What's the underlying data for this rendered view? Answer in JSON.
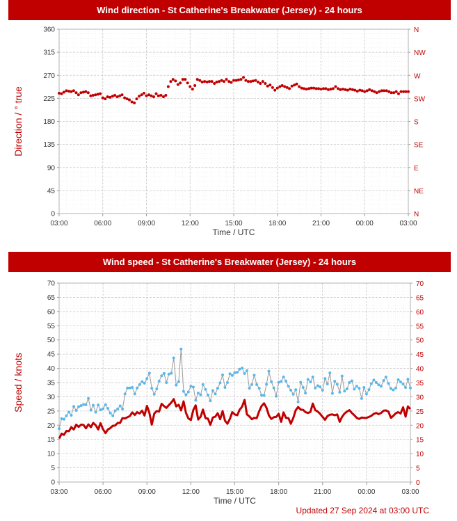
{
  "colors": {
    "banner": "#c00000",
    "accent": "#c00000",
    "gust": "#5bb7ea",
    "grid": "#c8c8c8",
    "axis_text": "#333333"
  },
  "footer": "Updated 27 Sep 2024 at 03:00 UTC",
  "chart_data": [
    {
      "type": "scatter",
      "title": "Wind direction - St Catherine's Breakwater (Jersey) - 24 hours",
      "xlabel": "Time / UTC",
      "ylabel": "Direction / ° true",
      "ylim": [
        0,
        360
      ],
      "y_ticks": [
        "0",
        "45",
        "90",
        "135",
        "180",
        "225",
        "270",
        "315",
        "360"
      ],
      "y_ticks_right": [
        "N",
        "NE",
        "E",
        "SE",
        "S",
        "SW",
        "W",
        "NW",
        "N"
      ],
      "x_ticks": [
        "03:00",
        "06:00",
        "09:00",
        "12:00",
        "15:00",
        "18:00",
        "21:00",
        "00:00",
        "03:00"
      ],
      "grid": true,
      "series": [
        {
          "x_hours_from_first_tick": [
            0.0,
            0.17,
            0.33,
            0.5,
            0.67,
            0.83,
            1.0,
            1.17,
            1.33,
            1.5,
            1.67,
            1.83,
            2.0,
            2.17,
            2.33,
            2.5,
            2.67,
            2.83,
            3.0,
            3.17,
            3.33,
            3.5,
            3.67,
            3.83,
            4.0,
            4.17,
            4.33,
            4.5,
            4.67,
            4.83,
            5.0,
            5.17,
            5.33,
            5.5,
            5.67,
            5.83,
            6.0,
            6.17,
            6.33,
            6.5,
            6.67,
            6.83,
            7.0,
            7.17,
            7.33,
            7.5,
            7.67,
            7.83,
            8.0,
            8.17,
            8.33,
            8.5,
            8.67,
            8.83,
            9.0,
            9.17,
            9.33,
            9.5,
            9.67,
            9.83,
            10.0,
            10.17,
            10.33,
            10.5,
            10.67,
            10.83,
            11.0,
            11.17,
            11.33,
            11.5,
            11.67,
            11.83,
            12.0,
            12.17,
            12.33,
            12.5,
            12.67,
            12.83,
            13.0,
            13.17,
            13.33,
            13.5,
            13.67,
            13.83,
            14.0,
            14.17,
            14.33,
            14.5,
            14.67,
            14.83,
            15.0,
            15.17,
            15.33,
            15.5,
            15.67,
            15.83,
            16.0,
            16.17,
            16.33,
            16.5,
            16.67,
            16.83,
            17.0,
            17.17,
            17.33,
            17.5,
            17.67,
            17.83,
            18.0,
            18.17,
            18.33,
            18.5,
            18.67,
            18.83,
            19.0,
            19.17,
            19.33,
            19.5,
            19.67,
            19.83,
            20.0,
            20.17,
            20.33,
            20.5,
            20.67,
            20.83,
            21.0,
            21.17,
            21.33,
            21.5,
            21.67,
            21.83,
            22.0,
            22.17,
            22.33,
            22.5,
            22.67,
            22.83,
            23.0,
            23.17,
            23.33,
            23.5,
            23.67,
            23.83,
            24.0
          ],
          "values": [
            235,
            234,
            237,
            240,
            239,
            238,
            240,
            236,
            232,
            236,
            237,
            238,
            236,
            230,
            231,
            232,
            233,
            234,
            226,
            224,
            228,
            227,
            229,
            231,
            228,
            230,
            232,
            226,
            224,
            222,
            218,
            216,
            224,
            229,
            232,
            235,
            230,
            232,
            230,
            228,
            234,
            230,
            231,
            228,
            231,
            248,
            258,
            262,
            259,
            252,
            255,
            262,
            262,
            255,
            248,
            243,
            250,
            262,
            260,
            257,
            258,
            257,
            258,
            258,
            254,
            257,
            258,
            260,
            258,
            262,
            258,
            256,
            260,
            260,
            261,
            262,
            266,
            260,
            258,
            258,
            259,
            260,
            257,
            254,
            258,
            254,
            249,
            251,
            246,
            241,
            245,
            248,
            250,
            248,
            246,
            244,
            249,
            251,
            253,
            248,
            245,
            244,
            243,
            244,
            245,
            245,
            244,
            244,
            243,
            244,
            244,
            242,
            243,
            244,
            248,
            244,
            242,
            243,
            242,
            241,
            243,
            242,
            241,
            239,
            241,
            240,
            238,
            240,
            242,
            240,
            238,
            236,
            238,
            240,
            240,
            240,
            238,
            236,
            236,
            238,
            234,
            238,
            238,
            238,
            238
          ]
        }
      ]
    },
    {
      "type": "line",
      "title": "Wind speed - St Catherine's Breakwater (Jersey) - 24 hours",
      "xlabel": "Time / UTC",
      "ylabel": "Speed / knots",
      "ylim": [
        0,
        70
      ],
      "y_ticks": [
        "0",
        "5",
        "10",
        "15",
        "20",
        "25",
        "30",
        "35",
        "40",
        "45",
        "50",
        "55",
        "60",
        "65",
        "70"
      ],
      "x_ticks": [
        "03:00",
        "06:00",
        "09:00",
        "12:00",
        "15:00",
        "18:00",
        "21:00",
        "00:00",
        "03:00"
      ],
      "grid": true,
      "series": [
        {
          "x_hours_from_first_tick": [
            0.0,
            0.17,
            0.33,
            0.5,
            0.67,
            0.83,
            1.0,
            1.17,
            1.33,
            1.5,
            1.67,
            1.83,
            2.0,
            2.17,
            2.33,
            2.5,
            2.67,
            2.83,
            3.0,
            3.17,
            3.33,
            3.5,
            3.67,
            3.83,
            4.0,
            4.17,
            4.33,
            4.5,
            4.67,
            4.83,
            5.0,
            5.17,
            5.33,
            5.5,
            5.67,
            5.83,
            6.0,
            6.17,
            6.33,
            6.5,
            6.67,
            6.83,
            7.0,
            7.17,
            7.33,
            7.5,
            7.67,
            7.83,
            8.0,
            8.17,
            8.33,
            8.5,
            8.67,
            8.83,
            9.0,
            9.17,
            9.33,
            9.5,
            9.67,
            9.83,
            10.0,
            10.17,
            10.33,
            10.5,
            10.67,
            10.83,
            11.0,
            11.17,
            11.33,
            11.5,
            11.67,
            11.83,
            12.0,
            12.17,
            12.33,
            12.5,
            12.67,
            12.83,
            13.0,
            13.17,
            13.33,
            13.5,
            13.67,
            13.83,
            14.0,
            14.17,
            14.33,
            14.5,
            14.67,
            14.83,
            15.0,
            15.17,
            15.33,
            15.5,
            15.67,
            15.83,
            16.0,
            16.17,
            16.33,
            16.5,
            16.67,
            16.83,
            17.0,
            17.17,
            17.33,
            17.5,
            17.67,
            17.83,
            18.0,
            18.17,
            18.33,
            18.5,
            18.67,
            18.83,
            19.0,
            19.17,
            19.33,
            19.5,
            19.67,
            19.83,
            20.0,
            20.17,
            20.33,
            20.5,
            20.67,
            20.83,
            21.0,
            21.17,
            21.33,
            21.5,
            21.67,
            21.83,
            22.0,
            22.17,
            22.33,
            22.5,
            22.67,
            22.83,
            23.0,
            23.17,
            23.33,
            23.5,
            23.67,
            23.83,
            24.0
          ],
          "values": [
            18.8,
            22.3,
            22.1,
            23.3,
            24.6,
            23.5,
            26.6,
            25.2,
            26.5,
            26.9,
            27.3,
            27.2,
            29.4,
            25.3,
            27.0,
            24.6,
            27.1,
            25.4,
            25.8,
            27.2,
            25.9,
            24.3,
            23.3,
            25.1,
            25.7,
            26.8,
            25.7,
            31.0,
            33.1,
            33.1,
            33.3,
            31.0,
            33.1,
            34.3,
            35.3,
            34.8,
            36.4,
            38.3,
            33.0,
            30.9,
            32.8,
            35.5,
            37.4,
            38.2,
            35.0,
            38.0,
            38.3,
            43.7,
            34.1,
            35.3,
            46.8,
            31.9,
            30.7,
            31.7,
            33.7,
            33.4,
            28.8,
            31.3,
            30.7,
            34.3,
            32.6,
            30.6,
            28.6,
            32.2,
            31.0,
            33.0,
            34.9,
            37.7,
            33.3,
            35.0,
            38.1,
            37.5,
            38.5,
            38.6,
            39.7,
            40.1,
            38.2,
            39.2,
            33.0,
            34.3,
            37.6,
            34.3,
            33.0,
            30.6,
            30.5,
            34.4,
            39.0,
            35.3,
            33.1,
            30.2,
            35.1,
            35.4,
            37.0,
            35.5,
            33.7,
            32.3,
            30.9,
            32.5,
            28.2,
            35.1,
            33.3,
            31.3,
            36.1,
            35.2,
            37.0,
            33.1,
            33.9,
            33.5,
            32.3,
            36.4,
            34.5,
            38.4,
            31.2,
            35.5,
            34.4,
            31.6,
            37.3,
            32.0,
            32.8,
            35.0,
            35.6,
            32.7,
            33.7,
            33.0,
            29.4,
            33.3,
            31.0,
            32.5,
            34.6,
            35.9,
            35.0,
            34.2,
            33.7,
            35.7,
            37.0,
            34.7,
            32.9,
            32.4,
            33.1,
            36.0,
            35.2,
            34.5,
            33.3,
            36.2,
            33.1
          ],
          "name": ""
        },
        {
          "x_hours_from_first_tick": [
            0.0,
            0.17,
            0.33,
            0.5,
            0.67,
            0.83,
            1.0,
            1.17,
            1.33,
            1.5,
            1.67,
            1.83,
            2.0,
            2.17,
            2.33,
            2.5,
            2.67,
            2.83,
            3.0,
            3.17,
            3.33,
            3.5,
            3.67,
            3.83,
            4.0,
            4.17,
            4.33,
            4.5,
            4.67,
            4.83,
            5.0,
            5.17,
            5.33,
            5.5,
            5.67,
            5.83,
            6.0,
            6.17,
            6.33,
            6.5,
            6.67,
            6.83,
            7.0,
            7.17,
            7.33,
            7.5,
            7.67,
            7.83,
            8.0,
            8.17,
            8.33,
            8.5,
            8.67,
            8.83,
            9.0,
            9.17,
            9.33,
            9.5,
            9.67,
            9.83,
            10.0,
            10.17,
            10.33,
            10.5,
            10.67,
            10.83,
            11.0,
            11.17,
            11.33,
            11.5,
            11.67,
            11.83,
            12.0,
            12.17,
            12.33,
            12.5,
            12.67,
            12.83,
            13.0,
            13.17,
            13.33,
            13.5,
            13.67,
            13.83,
            14.0,
            14.17,
            14.33,
            14.5,
            14.67,
            14.83,
            15.0,
            15.17,
            15.33,
            15.5,
            15.67,
            15.83,
            16.0,
            16.17,
            16.33,
            16.5,
            16.67,
            16.83,
            17.0,
            17.17,
            17.33,
            17.5,
            17.67,
            17.83,
            18.0,
            18.17,
            18.33,
            18.5,
            18.67,
            18.83,
            19.0,
            19.17,
            19.33,
            19.5,
            19.67,
            19.83,
            20.0,
            20.17,
            20.33,
            20.5,
            20.67,
            20.83,
            21.0,
            21.17,
            21.33,
            21.5,
            21.67,
            21.83,
            22.0,
            22.17,
            22.33,
            22.5,
            22.67,
            22.83,
            23.0,
            23.17,
            23.33,
            23.5,
            23.67,
            23.83,
            24.0
          ],
          "values": [
            15.3,
            17.0,
            16.6,
            18.0,
            17.9,
            19.3,
            18.5,
            20.2,
            19.4,
            20.2,
            20.1,
            18.9,
            20.3,
            19.3,
            20.8,
            20.0,
            18.5,
            20.7,
            18.6,
            17.2,
            18.5,
            19.0,
            19.8,
            19.9,
            20.8,
            20.8,
            22.5,
            22.4,
            22.8,
            23.2,
            24.5,
            23.6,
            24.6,
            24.1,
            25.1,
            23.4,
            26.8,
            24.3,
            20.2,
            24.1,
            25.0,
            24.8,
            27.5,
            26.7,
            26.1,
            27.1,
            28.0,
            29.2,
            26.6,
            27.2,
            25.2,
            28.4,
            24.3,
            22.4,
            21.8,
            25.4,
            27.0,
            22.0,
            23.0,
            25.5,
            22.5,
            22.3,
            20.1,
            22.7,
            23.0,
            24.2,
            22.1,
            25.0,
            21.6,
            20.5,
            22.3,
            24.6,
            23.8,
            23.5,
            25.4,
            26.5,
            28.9,
            23.8,
            23.1,
            22.1,
            22.6,
            22.5,
            24.9,
            26.7,
            27.7,
            26.1,
            23.5,
            22.2,
            22.8,
            22.9,
            24.0,
            21.2,
            24.5,
            22.6,
            22.5,
            20.5,
            22.6,
            25.3,
            26.4,
            25.5,
            25.4,
            24.6,
            24.3,
            24.7,
            27.6,
            25.3,
            24.8,
            24.0,
            22.9,
            21.9,
            23.2,
            23.7,
            23.8,
            23.5,
            23.8,
            21.2,
            22.9,
            24.1,
            24.8,
            25.3,
            24.3,
            23.5,
            22.6,
            22.2,
            22.7,
            22.6,
            22.6,
            22.9,
            23.3,
            24.0,
            24.3,
            23.9,
            24.3,
            25.1,
            25.2,
            24.8,
            22.6,
            23.3,
            24.2,
            24.6,
            24.1,
            26.3,
            23.0,
            26.6,
            25.7
          ],
          "name": ""
        }
      ]
    }
  ]
}
